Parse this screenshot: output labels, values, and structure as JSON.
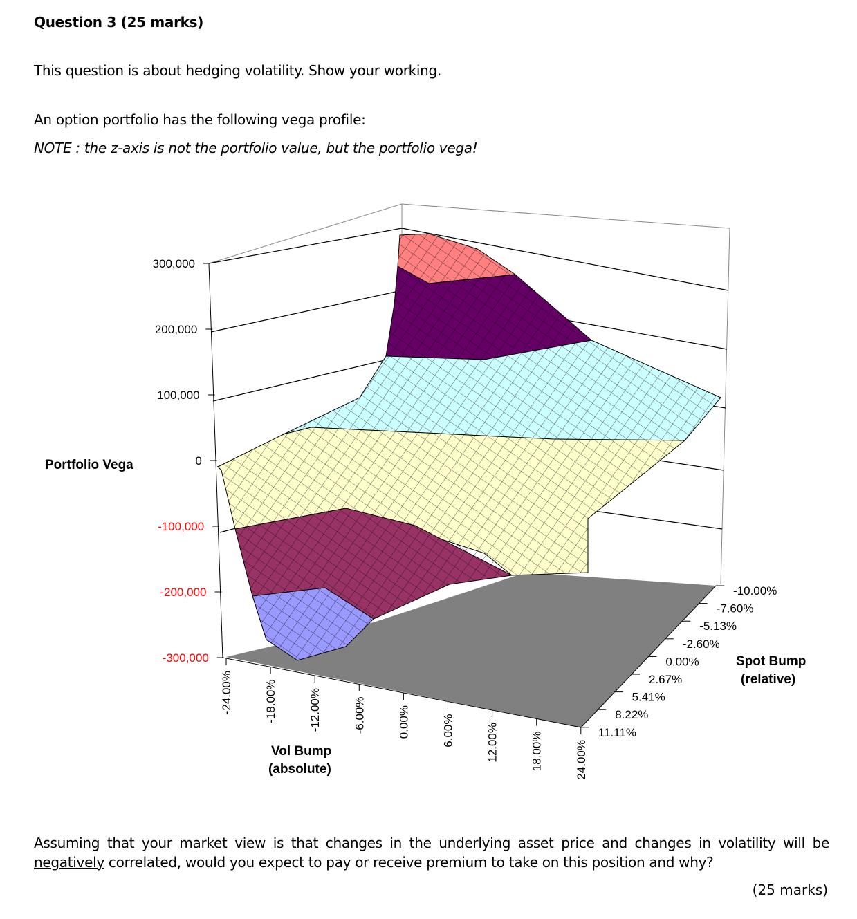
{
  "question": {
    "title": "Question 3 (25 marks)",
    "intro": "This question is about hedging volatility. Show your working.",
    "profile_text": "An option portfolio has the following vega profile:",
    "note": "NOTE : the z-axis is not the portfolio value, but the portfolio vega!",
    "prompt_before": "Assuming that your market view is that changes in the underlying asset price and changes in volatility will be ",
    "prompt_emph": "negatively",
    "prompt_after": " correlated, would you expect to pay or receive premium to take on this position and why?",
    "marks": "(25 marks)"
  },
  "chart_data": {
    "type": "surface",
    "zlabel": "Portfolio Vega",
    "xlabel": "Vol Bump (absolute)",
    "xlabel_lines": [
      "Vol Bump",
      "(absolute)"
    ],
    "ylabel_lines": [
      "Spot Bump",
      "(relative)"
    ],
    "z_ticks": [
      "300,000",
      "200,000",
      "100,000",
      "0",
      "-100,000",
      "-200,000",
      "-300,000"
    ],
    "zlim": [
      -300000,
      300000
    ],
    "x_ticks": [
      "-24.00%",
      "-18.00%",
      "-12.00%",
      "-6.00%",
      "0.00%",
      "6.00%",
      "12.00%",
      "18.00%",
      "24.00%"
    ],
    "y_ticks": [
      "-10.00%",
      "-7.60%",
      "-5.13%",
      "-2.60%",
      "0.00%",
      "2.67%",
      "5.41%",
      "8.22%",
      "11.11%"
    ],
    "negative_tick_color": "#ff0000",
    "band_colors": {
      "200000_300000": "#ff8080",
      "100000_200000": "#660066",
      "0_100000": "#ccffff",
      "-100000_0": "#ffffcc",
      "-200000_-100000": "#993366",
      "-300000_-200000": "#9999ff"
    },
    "floor_color": "#808080"
  }
}
